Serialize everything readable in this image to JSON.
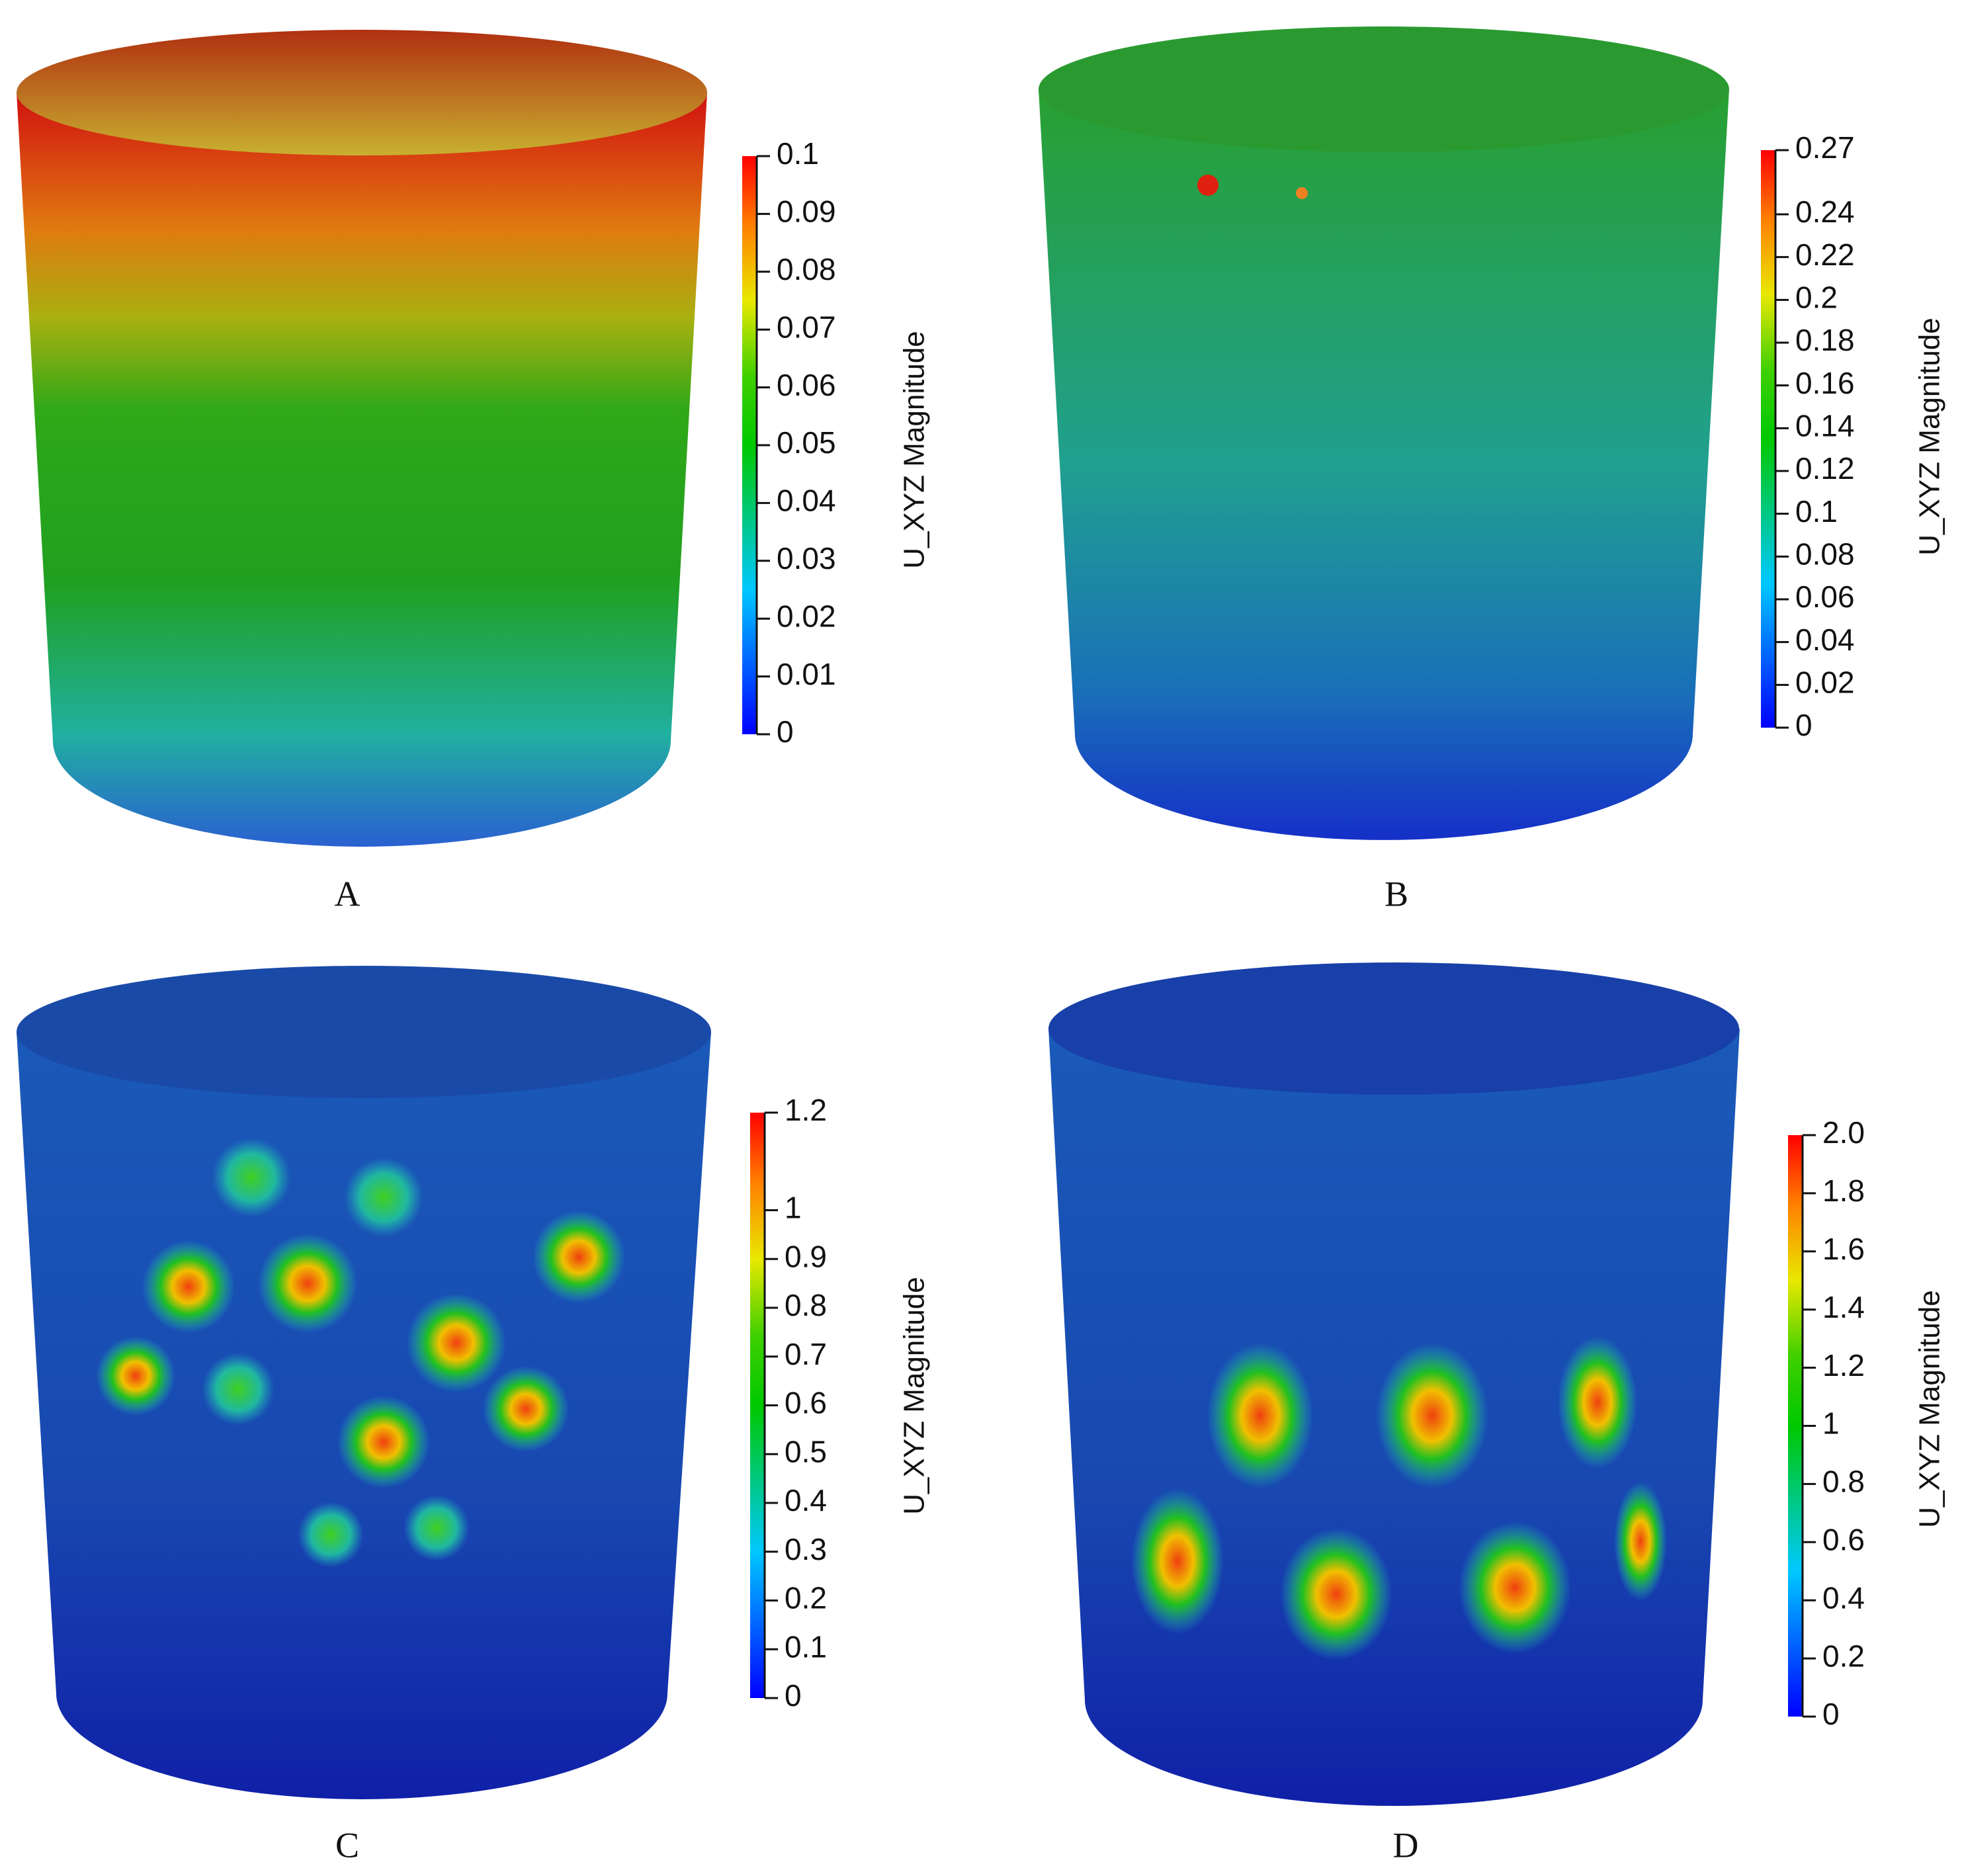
{
  "panels": [
    {
      "label": "A",
      "colorbar": {
        "title": "U_XYZ Magnitude",
        "range": [
          0,
          0.1
        ],
        "ticks": [
          0,
          0.01,
          0.02,
          0.03,
          0.04,
          0.05,
          0.06,
          0.07,
          0.08,
          0.09,
          0.1
        ]
      }
    },
    {
      "label": "B",
      "colorbar": {
        "title": "U_XYZ Magnitude",
        "range": [
          0,
          0.27
        ],
        "ticks": [
          0,
          0.02,
          0.04,
          0.06,
          0.08,
          0.1,
          0.12,
          0.14,
          0.16,
          0.18,
          0.2,
          0.22,
          0.24,
          0.27
        ]
      }
    },
    {
      "label": "C",
      "colorbar": {
        "title": "U_XYZ Magnitude",
        "range": [
          0,
          1.2
        ],
        "ticks": [
          0,
          0.1,
          0.2,
          0.3,
          0.4,
          0.5,
          0.6,
          0.7,
          0.8,
          0.9,
          1,
          1.2
        ]
      }
    },
    {
      "label": "D",
      "colorbar": {
        "title": "U_XYZ Magnitude",
        "range": [
          0,
          2
        ],
        "ticks": [
          0,
          0.2,
          0.4,
          0.6,
          0.8,
          1,
          1.2,
          1.4,
          1.6,
          1.8,
          {
            "value": 2,
            "label": "2.0"
          }
        ]
      }
    }
  ]
}
